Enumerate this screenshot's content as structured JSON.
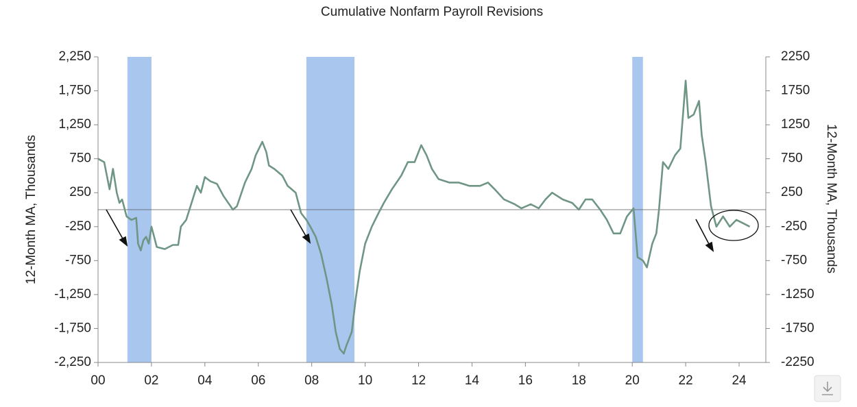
{
  "chart_data": {
    "type": "line",
    "title": "Cumulative Nonfarm Payroll Revisions",
    "y_label": "12-Month MA, Thousands",
    "y2_label": "12-Month MA, Thousands",
    "xlim": [
      2000,
      2025
    ],
    "xticks": [
      {
        "value": 2000,
        "label": "00"
      },
      {
        "value": 2002,
        "label": "02"
      },
      {
        "value": 2004,
        "label": "04"
      },
      {
        "value": 2006,
        "label": "06"
      },
      {
        "value": 2008,
        "label": "08"
      },
      {
        "value": 2010,
        "label": "10"
      },
      {
        "value": 2012,
        "label": "12"
      },
      {
        "value": 2014,
        "label": "14"
      },
      {
        "value": 2016,
        "label": "16"
      },
      {
        "value": 2018,
        "label": "18"
      },
      {
        "value": 2020,
        "label": "20"
      },
      {
        "value": 2022,
        "label": "22"
      },
      {
        "value": 2024,
        "label": "24"
      }
    ],
    "ylim": [
      -2250,
      2250
    ],
    "yticks": [
      {
        "value": -2250,
        "label": "-2,250"
      },
      {
        "value": -1750,
        "label": "-1,750"
      },
      {
        "value": -1250,
        "label": "-1,250"
      },
      {
        "value": -750,
        "label": "-750"
      },
      {
        "value": -250,
        "label": "-250"
      },
      {
        "value": 250,
        "label": "250"
      },
      {
        "value": 750,
        "label": "750"
      },
      {
        "value": 1250,
        "label": "1,250"
      },
      {
        "value": 1750,
        "label": "1,750"
      },
      {
        "value": 2250,
        "label": "2,250"
      }
    ],
    "y2lim": [
      -2250,
      2250
    ],
    "y2ticks": [
      -2250,
      -1750,
      -1250,
      -750,
      -250,
      250,
      750,
      1250,
      1750,
      2250
    ],
    "reference_line": 0,
    "shaded_periods": [
      {
        "start": 2001.1,
        "end": 2002.0
      },
      {
        "start": 2007.8,
        "end": 2009.6
      },
      {
        "start": 2020.0,
        "end": 2020.4
      }
    ],
    "shade_color": "#a9c6ee",
    "series": [
      {
        "color": "#6f9585",
        "x": [
          2000.0,
          2000.23,
          2000.43,
          2000.56,
          2000.7,
          2000.8,
          2000.9,
          2001.07,
          2001.25,
          2001.43,
          2001.5,
          2001.6,
          2001.7,
          2001.8,
          2001.9,
          2002.0,
          2002.1,
          2002.2,
          2002.5,
          2002.8,
          2003.0,
          2003.1,
          2003.3,
          2003.5,
          2003.7,
          2003.85,
          2004.0,
          2004.2,
          2004.45,
          2004.7,
          2005.05,
          2005.2,
          2005.5,
          2005.75,
          2005.9,
          2006.15,
          2006.3,
          2006.4,
          2006.6,
          2006.9,
          2007.1,
          2007.4,
          2007.6,
          2007.8,
          2007.95,
          2008.15,
          2008.35,
          2008.55,
          2008.75,
          2008.9,
          2009.05,
          2009.2,
          2009.3,
          2009.5,
          2009.65,
          2009.8,
          2010.0,
          2010.25,
          2010.5,
          2010.7,
          2011.0,
          2011.35,
          2011.6,
          2011.85,
          2012.1,
          2012.3,
          2012.5,
          2012.75,
          2013.15,
          2013.5,
          2013.9,
          2014.3,
          2014.6,
          2014.85,
          2015.2,
          2015.6,
          2015.85,
          2016.2,
          2016.5,
          2016.75,
          2017.0,
          2017.4,
          2017.75,
          2018.0,
          2018.25,
          2018.5,
          2018.8,
          2019.05,
          2019.3,
          2019.55,
          2019.8,
          2020.05,
          2020.2,
          2020.4,
          2020.55,
          2020.75,
          2020.9,
          2021.0,
          2021.15,
          2021.35,
          2021.6,
          2021.8,
          2022.0,
          2022.1,
          2022.3,
          2022.5,
          2022.6,
          2022.75,
          2022.95,
          2023.15,
          2023.4,
          2023.65,
          2023.9,
          2024.15,
          2024.4
        ],
        "values": [
          750,
          700,
          300,
          600,
          250,
          100,
          150,
          -100,
          -150,
          -120,
          -500,
          -600,
          -450,
          -400,
          -500,
          -250,
          -400,
          -550,
          -580,
          -520,
          -520,
          -250,
          -150,
          100,
          350,
          250,
          480,
          420,
          380,
          200,
          0,
          50,
          400,
          600,
          800,
          1000,
          850,
          650,
          600,
          500,
          350,
          250,
          -50,
          -150,
          -250,
          -400,
          -650,
          -1000,
          -1400,
          -1800,
          -2050,
          -2120,
          -2000,
          -1800,
          -1300,
          -900,
          -500,
          -250,
          -50,
          100,
          300,
          500,
          700,
          700,
          950,
          800,
          600,
          450,
          400,
          400,
          350,
          350,
          400,
          300,
          150,
          80,
          20,
          80,
          20,
          150,
          250,
          150,
          100,
          0,
          150,
          150,
          0,
          -150,
          -350,
          -350,
          -100,
          20,
          -700,
          -750,
          -850,
          -500,
          -350,
          0,
          700,
          600,
          800,
          900,
          1900,
          1350,
          1400,
          1600,
          1100,
          700,
          50,
          -250,
          -100,
          -250,
          -150,
          -200,
          -250
        ]
      }
    ]
  }
}
